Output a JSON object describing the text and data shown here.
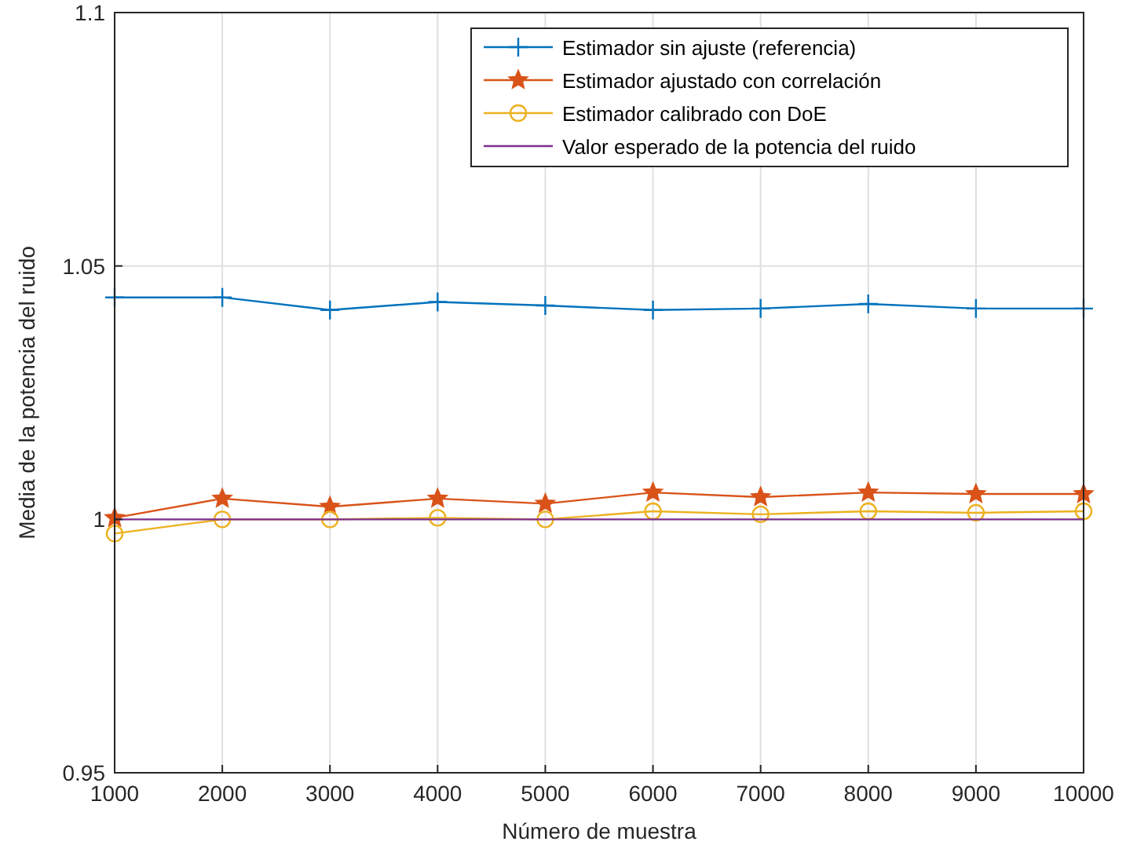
{
  "chart_data": {
    "type": "line",
    "xlabel": "Número de muestra",
    "ylabel": "Media de la potencia del ruido",
    "x": [
      1000,
      2000,
      3000,
      4000,
      5000,
      6000,
      7000,
      8000,
      9000,
      10000
    ],
    "series": [
      {
        "name": "Estimador sin ajuste (referencia)",
        "color": "#0072bd",
        "marker": "cross",
        "values": [
          1.0438,
          1.0438,
          1.0413,
          1.0429,
          1.0422,
          1.0413,
          1.0416,
          1.0425,
          1.0416,
          1.0416
        ]
      },
      {
        "name": "Estimador ajustado con correlación",
        "color": "#d95319",
        "marker": "star",
        "values": [
          1.0003,
          1.0041,
          1.0025,
          1.0041,
          1.0031,
          1.0053,
          1.0044,
          1.0053,
          1.005,
          1.005
        ]
      },
      {
        "name": "Estimador calibrado con DoE",
        "color": "#edb120",
        "marker": "circle",
        "values": [
          0.9972,
          1.0,
          1.0,
          1.0003,
          1.0,
          1.0016,
          1.001,
          1.0016,
          1.0013,
          1.0016
        ]
      },
      {
        "name": "Valor esperado de la potencia del ruido",
        "color": "#7e2f8e",
        "marker": "none",
        "values": [
          1,
          1,
          1,
          1,
          1,
          1,
          1,
          1,
          1,
          1
        ]
      }
    ],
    "xlim": [
      1000,
      10000
    ],
    "xticks": [
      1000,
      2000,
      3000,
      4000,
      5000,
      6000,
      7000,
      8000,
      9000,
      10000
    ],
    "ylim": [
      0.95,
      1.1
    ],
    "yticks": [
      0.95,
      1,
      1.05,
      1.1
    ],
    "grid": true,
    "legend": "top right"
  }
}
